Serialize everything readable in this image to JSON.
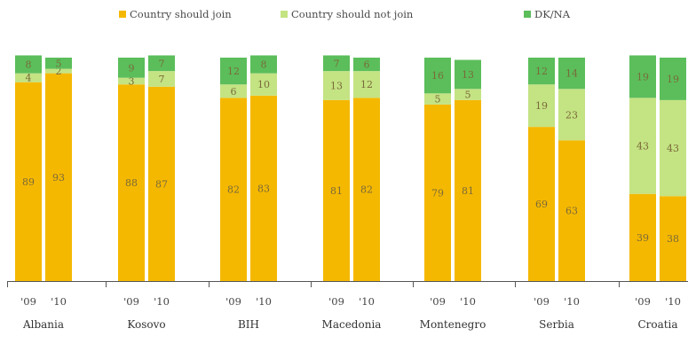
{
  "chart_data": {
    "type": "bar",
    "stacked": true,
    "ylim": [
      0,
      100
    ],
    "grid": false,
    "legend_position": "top",
    "legend": [
      {
        "label": "Country should join",
        "color": "#F5B800"
      },
      {
        "label": "Country should not join",
        "color": "#C4E383"
      },
      {
        "label": "DK/NA",
        "color": "#5BBE5B"
      }
    ],
    "series_colors": {
      "join": "#F5B800",
      "not_join": "#C4E383",
      "dkna": "#5BBE5B"
    },
    "groups": [
      {
        "name": "Albania",
        "bars": [
          {
            "year": "'09",
            "join": 89,
            "not_join": 4,
            "dkna": 8
          },
          {
            "year": "'10",
            "join": 93,
            "not_join": 2,
            "dkna": 5
          }
        ]
      },
      {
        "name": "Kosovo",
        "bars": [
          {
            "year": "'09",
            "join": 88,
            "not_join": 3,
            "dkna": 9
          },
          {
            "year": "'10",
            "join": 87,
            "not_join": 7,
            "dkna": 7
          }
        ]
      },
      {
        "name": "BIH",
        "bars": [
          {
            "year": "'09",
            "join": 82,
            "not_join": 6,
            "dkna": 12
          },
          {
            "year": "'10",
            "join": 83,
            "not_join": 10,
            "dkna": 8
          }
        ]
      },
      {
        "name": "Macedonia",
        "bars": [
          {
            "year": "'09",
            "join": 81,
            "not_join": 13,
            "dkna": 7
          },
          {
            "year": "'10",
            "join": 82,
            "not_join": 12,
            "dkna": 6
          }
        ]
      },
      {
        "name": "Montenegro",
        "bars": [
          {
            "year": "'09",
            "join": 79,
            "not_join": 5,
            "dkna": 16
          },
          {
            "year": "'10",
            "join": 81,
            "not_join": 5,
            "dkna": 13
          }
        ]
      },
      {
        "name": "Serbia",
        "bars": [
          {
            "year": "'09",
            "join": 69,
            "not_join": 19,
            "dkna": 12
          },
          {
            "year": "'10",
            "join": 63,
            "not_join": 23,
            "dkna": 14
          }
        ]
      },
      {
        "name": "Croatia",
        "bars": [
          {
            "year": "'09",
            "join": 39,
            "not_join": 43,
            "dkna": 19
          },
          {
            "year": "'10",
            "join": 38,
            "not_join": 43,
            "dkna": 19
          }
        ]
      }
    ]
  }
}
